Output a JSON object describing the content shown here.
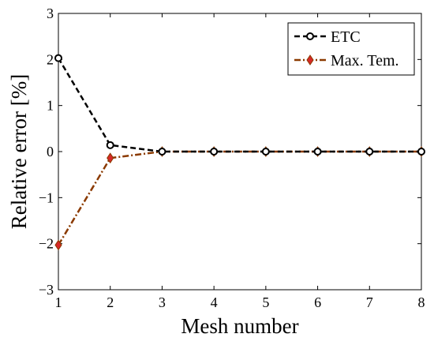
{
  "chart_data": {
    "type": "line",
    "xlabel": "Mesh number",
    "ylabel": "Relative error [%]",
    "xlim": [
      1,
      8
    ],
    "ylim": [
      -3,
      3
    ],
    "xticks": [
      "1",
      "2",
      "3",
      "4",
      "5",
      "6",
      "7",
      "8"
    ],
    "yticks": [
      "3",
      "2",
      "1",
      "0",
      "−1",
      "−2",
      "−3"
    ],
    "grid": false,
    "legend_position": "top-right",
    "x": [
      1,
      2,
      3,
      4,
      5,
      6,
      7,
      8
    ],
    "series": [
      {
        "name": "ETC",
        "values": [
          2.03,
          0.14,
          0.0,
          0.0,
          0.0,
          0.0,
          0.0,
          0.0
        ],
        "color": "#000000",
        "line_style": "dashed",
        "marker": "circle"
      },
      {
        "name": "Max. Tem.",
        "values": [
          -2.03,
          -0.14,
          0.0,
          0.0,
          0.0,
          0.0,
          0.0,
          0.0
        ],
        "color": "#8B3A00",
        "marker_color": "#D62828",
        "line_style": "dash-dot",
        "marker": "diamond"
      }
    ]
  }
}
